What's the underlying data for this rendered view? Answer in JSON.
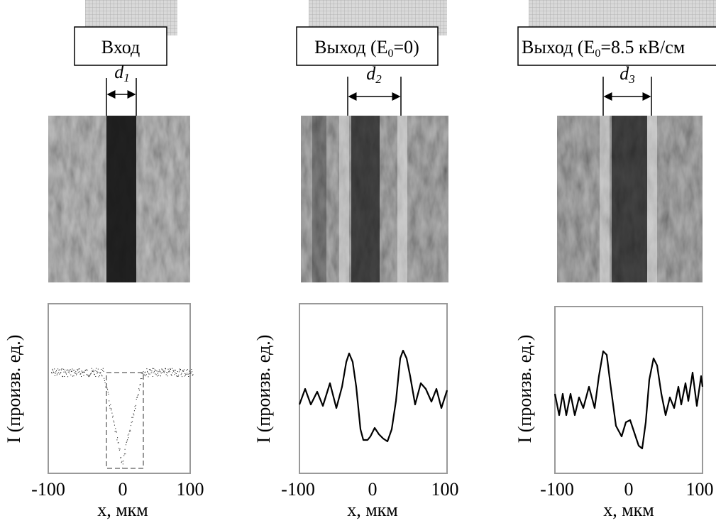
{
  "panels": [
    {
      "title": "Вход",
      "d_label": "d",
      "d_sub": "1",
      "y_label": "I (произв. ед.)",
      "x_ticks": [
        "-100",
        "0",
        "100"
      ],
      "x_label": "x, мкм"
    },
    {
      "title": "Выход (E",
      "title_sub": "0",
      "title_end": "=0)",
      "d_label": "d",
      "d_sub": "2",
      "y_label": "I (произв. ед.)",
      "x_ticks": [
        "-100",
        "0",
        "100"
      ],
      "x_label": "x, мкм"
    },
    {
      "title": "Выход (E",
      "title_sub": "0",
      "title_end": "=8.5 кВ/см",
      "d_label": "d",
      "d_sub": "3",
      "y_label": "I (произв. ед.)",
      "x_ticks": [
        "-100",
        "0",
        "100"
      ],
      "x_label": "x, мкм"
    }
  ]
}
